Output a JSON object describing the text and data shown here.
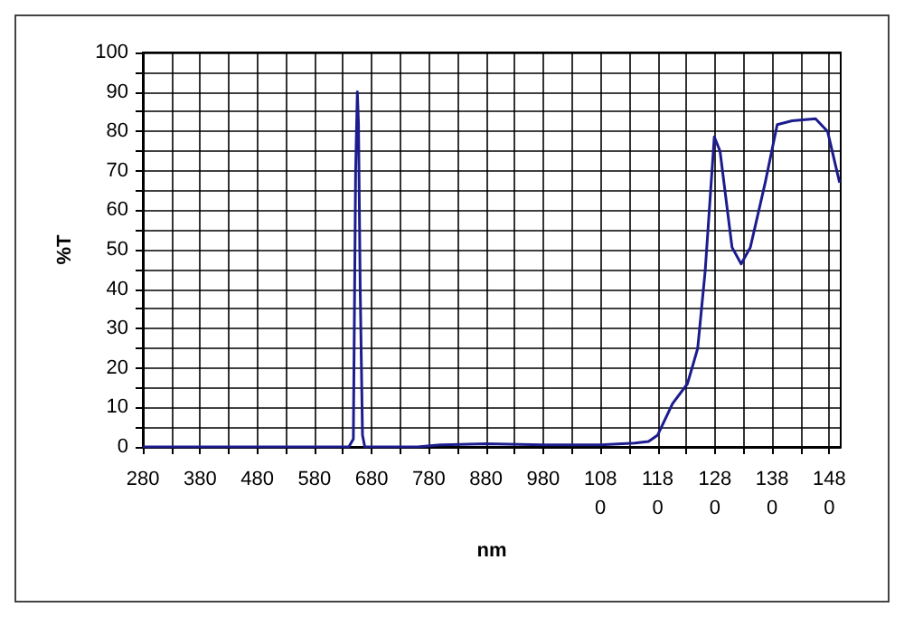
{
  "chart_data": {
    "type": "line",
    "xlabel": "nm",
    "ylabel": "%T",
    "xlim": [
      280,
      1500
    ],
    "ylim": [
      0,
      100
    ],
    "xticks": [
      280,
      {
        "value": 330,
        "label": null
      },
      380,
      {
        "value": 430,
        "label": null
      },
      480,
      {
        "value": 530,
        "label": null
      },
      580,
      {
        "value": 630,
        "label": null
      },
      680,
      {
        "value": 730,
        "label": null
      },
      780,
      {
        "value": 830,
        "label": null
      },
      880,
      {
        "value": 930,
        "label": null
      },
      980,
      {
        "value": 1030,
        "label": null
      },
      1080,
      {
        "value": 1130,
        "label": null
      },
      1180,
      {
        "value": 1230,
        "label": null
      },
      1280,
      {
        "value": 1330,
        "label": null
      },
      1380,
      {
        "value": 1430,
        "label": null
      },
      1480
    ],
    "yticks": [
      0,
      {
        "value": 5,
        "label": null
      },
      10,
      {
        "value": 15,
        "label": null
      },
      20,
      {
        "value": 25,
        "label": null
      },
      30,
      {
        "value": 35,
        "label": null
      },
      40,
      {
        "value": 45,
        "label": null
      },
      50,
      {
        "value": 55,
        "label": null
      },
      60,
      {
        "value": 65,
        "label": null
      },
      70,
      {
        "value": 75,
        "label": null
      },
      80,
      {
        "value": 85,
        "label": null
      },
      90,
      {
        "value": 95,
        "label": null
      },
      100
    ],
    "grid": true,
    "marker": "none",
    "line_style": "solid",
    "series": [
      {
        "color": "#1c1c8e",
        "x": [
          280,
          640,
          648,
          652,
          655,
          657,
          660,
          664,
          668,
          760,
          800,
          880,
          980,
          1080,
          1140,
          1164,
          1180,
          1206,
          1232,
          1250,
          1263,
          1279,
          1289,
          1310,
          1326,
          1342,
          1368,
          1389,
          1415,
          1456,
          1477,
          1498
        ],
        "values": [
          0,
          0,
          2,
          70,
          90,
          82,
          40,
          3,
          0,
          0,
          0.5,
          0.8,
          0.5,
          0.5,
          1,
          1.4,
          3,
          11,
          16,
          25,
          44.5,
          78.6,
          75,
          50.6,
          46.4,
          50.6,
          67,
          81.7,
          82.7,
          83.2,
          80,
          67
        ]
      }
    ]
  }
}
